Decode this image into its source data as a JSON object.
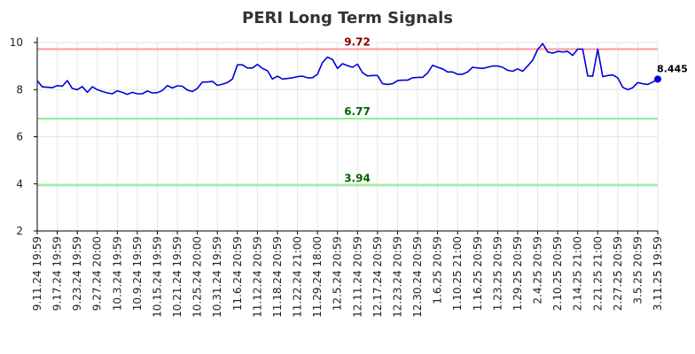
{
  "chart_data": {
    "type": "line",
    "title": "PERI Long Term Signals",
    "xlabel": "",
    "ylabel": "",
    "ylim": [
      2,
      10
    ],
    "yticks": [
      2,
      4,
      6,
      8,
      10
    ],
    "grid": true,
    "x_tick_labels": [
      "9.11.24 19:59",
      "9.17.24 19:59",
      "9.23.24 19:59",
      "9.27.24 20:00",
      "10.3.24 19:59",
      "10.9.24 19:59",
      "10.15.24 19:59",
      "10.21.24 19:59",
      "10.25.24 20:00",
      "10.31.24 19:59",
      "11.6.24 20:59",
      "11.12.24 20:59",
      "11.18.24 20:59",
      "11.22.24 21:00",
      "11.29.24 18:00",
      "12.5.24 20:59",
      "12.11.24 20:59",
      "12.17.24 20:59",
      "12.23.24 20:59",
      "12.30.24 20:59",
      "1.6.25 20:59",
      "1.10.25 21:00",
      "1.16.25 20:59",
      "1.23.25 20:59",
      "1.29.25 20:59",
      "2.4.25 20:59",
      "2.10.25 20:59",
      "2.14.25 21:00",
      "2.21.25 21:00",
      "2.27.25 20:59",
      "3.5.25 20:59",
      "3.11.25 19:59"
    ],
    "reference_lines": [
      {
        "value": 9.72,
        "label": "9.72",
        "color": "#ff9999",
        "label_color": "#8b0000"
      },
      {
        "value": 6.77,
        "label": "6.77",
        "color": "#90ee90",
        "label_color": "#006400"
      },
      {
        "value": 3.94,
        "label": "3.94",
        "color": "#90ee90",
        "label_color": "#006400"
      }
    ],
    "series": [
      {
        "color": "#0000dd",
        "values": [
          8.38,
          8.12,
          8.1,
          8.08,
          8.17,
          8.14,
          8.38,
          8.05,
          8.0,
          8.13,
          7.88,
          8.12,
          8.0,
          7.92,
          7.86,
          7.82,
          7.95,
          7.88,
          7.8,
          7.88,
          7.82,
          7.82,
          7.94,
          7.86,
          7.87,
          7.96,
          8.17,
          8.07,
          8.16,
          8.14,
          7.98,
          7.92,
          8.05,
          8.32,
          8.32,
          8.35,
          8.18,
          8.23,
          8.3,
          8.45,
          9.05,
          9.05,
          8.92,
          8.92,
          9.07,
          8.9,
          8.8,
          8.45,
          8.57,
          8.45,
          8.47,
          8.5,
          8.55,
          8.57,
          8.5,
          8.5,
          8.65,
          9.15,
          9.38,
          9.28,
          8.9,
          9.1,
          9.02,
          8.95,
          9.08,
          8.72,
          8.58,
          8.6,
          8.6,
          8.25,
          8.22,
          8.25,
          8.38,
          8.4,
          8.4,
          8.5,
          8.52,
          8.52,
          8.7,
          9.03,
          8.95,
          8.88,
          8.75,
          8.75,
          8.65,
          8.65,
          8.75,
          8.95,
          8.92,
          8.9,
          8.95,
          9.0,
          9.0,
          8.95,
          8.82,
          8.78,
          8.88,
          8.78,
          9.0,
          9.25,
          9.7,
          9.95,
          9.6,
          9.55,
          9.62,
          9.6,
          9.62,
          9.45,
          9.72,
          9.72,
          8.58,
          8.57,
          9.72,
          8.55,
          8.6,
          8.62,
          8.5,
          8.1,
          8.0,
          8.08,
          8.3,
          8.25,
          8.22,
          8.32,
          8.445
        ],
        "last_value_label": "8.445"
      }
    ]
  }
}
